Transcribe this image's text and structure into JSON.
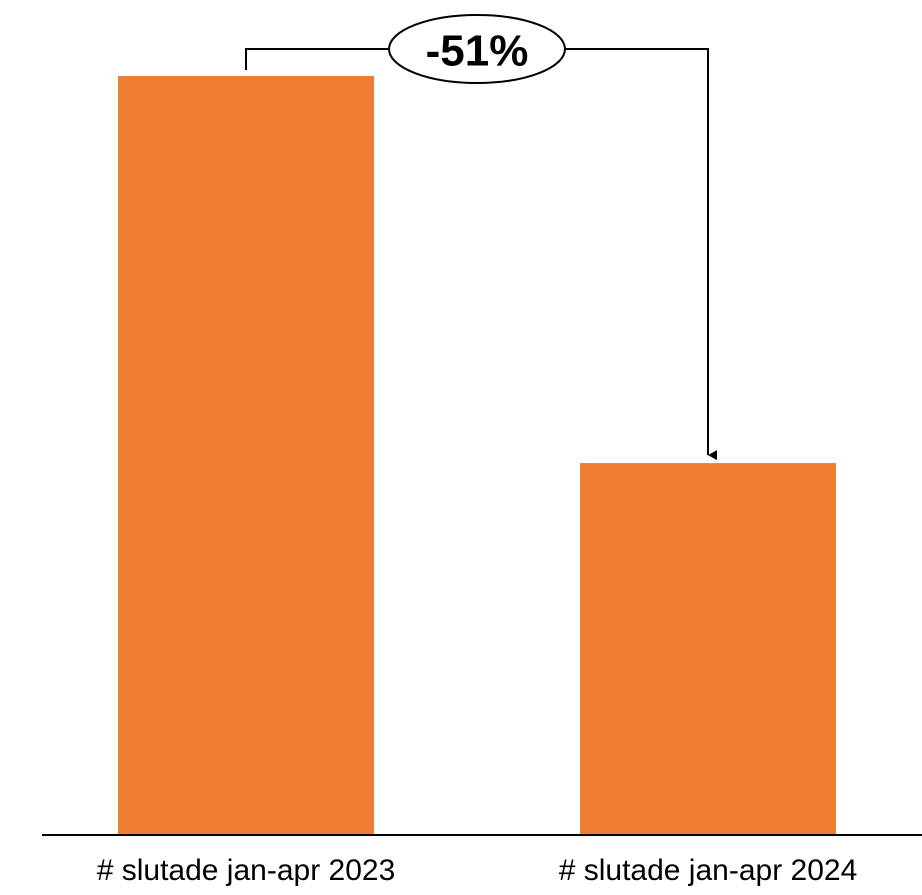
{
  "chart_data": {
    "type": "bar",
    "categories": [
      "# slutade jan-apr 2023",
      "# slutade jan-apr 2024"
    ],
    "values": [
      100,
      49
    ],
    "value_scale": "relative (first bar = 100)",
    "bar_color": "#ED7D31",
    "axis_color": "#000000",
    "ylim": [
      0,
      100
    ],
    "grid": false,
    "legend": "none",
    "annotation": {
      "label": "-51%",
      "from_category": 0,
      "to_category": 1,
      "style": "bracket arrow with ellipse label"
    }
  }
}
